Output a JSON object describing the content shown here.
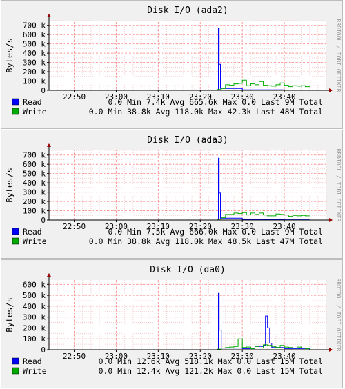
{
  "chart_data": [
    {
      "type": "line",
      "title": "Disk I/O (ada2)",
      "ylabel": "Bytes/s",
      "watermark": "RRDTOOL / TOBI OETIKER",
      "ylim": [
        0,
        750
      ],
      "yticks": [
        0,
        100,
        200,
        300,
        400,
        500,
        600,
        700
      ],
      "ytick_labels": [
        "0",
        "100 k",
        "200 k",
        "300 k",
        "400 k",
        "500 k",
        "600 k",
        "700 k"
      ],
      "xlim": [
        "22:44",
        "23:50"
      ],
      "xticks": [
        "22:50",
        "23:00",
        "23:10",
        "23:20",
        "23:30",
        "23:40"
      ],
      "colors": {
        "read": "#0000ff",
        "write": "#00aa00",
        "grid": "#ff9999",
        "axis": "#000000"
      },
      "series": [
        {
          "name": "Read",
          "color": "#0000ff",
          "x": [
            "23:24",
            "23:24.3",
            "23:24.5",
            "23:24.8",
            "23:30",
            "23:40",
            "23:46"
          ],
          "values": [
            0,
            665.6,
            280,
            20,
            5,
            3,
            3
          ]
        },
        {
          "name": "Write",
          "color": "#00aa00",
          "x": [
            "23:24",
            "23:25",
            "23:26",
            "23:27",
            "23:28",
            "23:29",
            "23:30",
            "23:31",
            "23:32",
            "23:33",
            "23:34",
            "23:35",
            "23:36",
            "23:37",
            "23:38",
            "23:39",
            "23:40",
            "23:41",
            "23:42",
            "23:43",
            "23:44",
            "23:45",
            "23:46"
          ],
          "values": [
            10,
            20,
            60,
            55,
            70,
            75,
            110,
            50,
            70,
            60,
            95,
            55,
            50,
            45,
            60,
            80,
            55,
            40,
            50,
            45,
            50,
            40,
            40
          ]
        }
      ],
      "legend": [
        {
          "swatch": "#0000ff",
          "label": "Read",
          "stats": "0.0  Min   7.4k Avg 665.6k Max    0.0  Last     9M Total"
        },
        {
          "swatch": "#00aa00",
          "label": "Write",
          "stats": "0.0  Min  38.8k Avg 118.0k Max   42.3k Last    48M Total"
        }
      ]
    },
    {
      "type": "line",
      "title": "Disk I/O (ada3)",
      "ylabel": "Bytes/s",
      "watermark": "RRDTOOL / TOBI OETIKER",
      "ylim": [
        0,
        750
      ],
      "yticks": [
        0,
        100,
        200,
        300,
        400,
        500,
        600,
        700
      ],
      "ytick_labels": [
        "0",
        "100 k",
        "200 k",
        "300 k",
        "400 k",
        "500 k",
        "600 k",
        "700 k"
      ],
      "xlim": [
        "22:44",
        "23:50"
      ],
      "xticks": [
        "22:50",
        "23:00",
        "23:10",
        "23:20",
        "23:30",
        "23:40"
      ],
      "colors": {
        "read": "#0000ff",
        "write": "#00aa00",
        "grid": "#ff9999",
        "axis": "#000000"
      },
      "series": [
        {
          "name": "Read",
          "color": "#0000ff",
          "x": [
            "23:24",
            "23:24.3",
            "23:24.5",
            "23:24.8",
            "23:30",
            "23:40",
            "23:46"
          ],
          "values": [
            0,
            666.0,
            290,
            20,
            5,
            3,
            3
          ]
        },
        {
          "name": "Write",
          "color": "#00aa00",
          "x": [
            "23:24",
            "23:25",
            "23:26",
            "23:27",
            "23:28",
            "23:29",
            "23:30",
            "23:31",
            "23:32",
            "23:33",
            "23:34",
            "23:35",
            "23:36",
            "23:37",
            "23:38",
            "23:39",
            "23:40",
            "23:41",
            "23:42",
            "23:43",
            "23:44",
            "23:45",
            "23:46"
          ],
          "values": [
            10,
            25,
            60,
            60,
            75,
            70,
            80,
            55,
            75,
            60,
            75,
            55,
            45,
            45,
            65,
            60,
            55,
            40,
            50,
            45,
            50,
            45,
            45
          ]
        }
      ],
      "legend": [
        {
          "swatch": "#0000ff",
          "label": "Read",
          "stats": "0.0  Min   7.5k Avg 666.0k Max    0.0  Last     9M Total"
        },
        {
          "swatch": "#00aa00",
          "label": "Write",
          "stats": "0.0  Min  38.8k Avg 118.0k Max   48.5k Last    47M Total"
        }
      ]
    },
    {
      "type": "line",
      "title": "Disk I/O (da0)",
      "ylabel": "Bytes/s",
      "watermark": "RRDTOOL / TOBI OETIKER",
      "ylim": [
        0,
        640
      ],
      "yticks": [
        0,
        100,
        200,
        300,
        400,
        500,
        600
      ],
      "ytick_labels": [
        "0",
        "100 k",
        "200 k",
        "300 k",
        "400 k",
        "500 k",
        "600 k"
      ],
      "xlim": [
        "22:44",
        "23:50"
      ],
      "xticks": [
        "22:50",
        "23:00",
        "23:10",
        "23:20",
        "23:30",
        "23:40"
      ],
      "colors": {
        "read": "#0000ff",
        "write": "#00aa00",
        "grid": "#ff9999",
        "axis": "#000000"
      },
      "series": [
        {
          "name": "Read",
          "color": "#0000ff",
          "x": [
            "23:24",
            "23:24.3",
            "23:24.5",
            "23:25",
            "23:30",
            "23:33",
            "23:35",
            "23:35.5",
            "23:36",
            "23:36.5",
            "23:37",
            "23:40",
            "23:46"
          ],
          "values": [
            0,
            518.1,
            180,
            15,
            10,
            30,
            40,
            310,
            200,
            60,
            20,
            10,
            5
          ]
        },
        {
          "name": "Write",
          "color": "#00aa00",
          "x": [
            "23:24",
            "23:25",
            "23:26",
            "23:27",
            "23:28",
            "23:29",
            "23:30",
            "23:31",
            "23:32",
            "23:33",
            "23:34",
            "23:35",
            "23:36",
            "23:37",
            "23:38",
            "23:39",
            "23:40",
            "23:41",
            "23:42",
            "23:43",
            "23:44",
            "23:45",
            "23:46"
          ],
          "values": [
            5,
            15,
            20,
            25,
            30,
            100,
            20,
            25,
            10,
            30,
            15,
            45,
            40,
            30,
            20,
            40,
            25,
            20,
            15,
            25,
            15,
            10,
            10
          ]
        }
      ],
      "legend": [
        {
          "swatch": "#0000ff",
          "label": "Read",
          "stats": "0.0  Min  12.6k Avg 518.1k Max    0.0  Last    15M Total"
        },
        {
          "swatch": "#00aa00",
          "label": "Write",
          "stats": "0.0  Min  12.4k Avg 121.2k Max    0.0  Last    15M Total"
        }
      ]
    }
  ]
}
